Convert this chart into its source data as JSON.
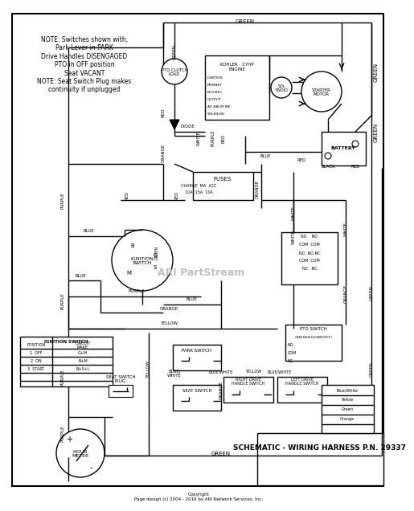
{
  "bg_color": "#ffffff",
  "line_color": "#000000",
  "lw": 1.0,
  "title": "SCHEMATIC - WIRING HARNESS P.N. 29337",
  "copyright": "Copyright\nPage design (c) 2004 - 2016 by ARI Network Services, Inc.",
  "watermark": "ARI PartStream",
  "watermark_color": "#c0c0c0",
  "note": "NOTE: Switches shown with,\nPark Lever in PARK\nDrive Handles DISENGAGED\nPTO in OFF position\nSeat VACANT\nNOTE: Seat Switch Plug makes\ncontinuity if unplugged"
}
